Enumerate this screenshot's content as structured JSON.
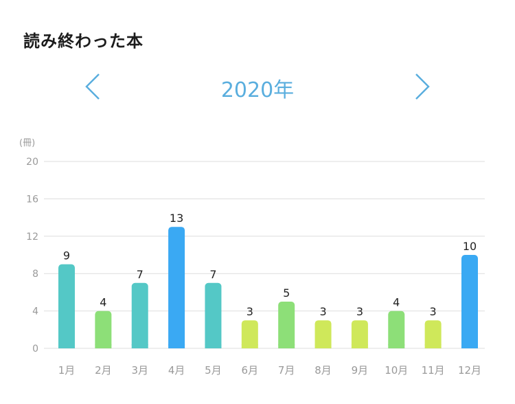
{
  "header": {
    "title": "読み終わった本"
  },
  "year_nav": {
    "label": "2020年",
    "prev_icon": "chevron-left-icon",
    "next_icon": "chevron-right-icon"
  },
  "colors": {
    "accent": "#5aaede",
    "grid": "#dddddd",
    "tick": "#999999",
    "high": "#3aa9f3",
    "mid": "#54c8c6",
    "low": "#8ddf78",
    "min": "#cfe85a"
  },
  "chart_data": {
    "type": "bar",
    "unit_label": "(冊)",
    "categories": [
      "1月",
      "2月",
      "3月",
      "4月",
      "5月",
      "6月",
      "7月",
      "8月",
      "9月",
      "10月",
      "11月",
      "12月"
    ],
    "values": [
      9,
      4,
      7,
      13,
      7,
      3,
      5,
      3,
      3,
      4,
      3,
      10
    ],
    "bar_colors": [
      "#54c8c6",
      "#8ddf78",
      "#54c8c6",
      "#3aa9f3",
      "#54c8c6",
      "#cfe85a",
      "#8ddf78",
      "#cfe85a",
      "#cfe85a",
      "#8ddf78",
      "#cfe85a",
      "#3aa9f3"
    ],
    "yticks": [
      0,
      4,
      8,
      12,
      16,
      20
    ],
    "ylim": [
      0,
      20
    ],
    "grid": true,
    "data_labels": true
  }
}
